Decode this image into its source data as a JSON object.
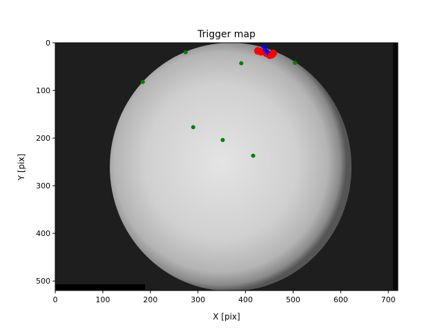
{
  "chart_data": {
    "type": "scatter",
    "title": "Trigger map",
    "xlabel": "X [pix]",
    "ylabel": "Y [pix]",
    "xlim": [
      0,
      720
    ],
    "ylim": [
      520,
      0
    ],
    "xticks": [
      0,
      100,
      200,
      300,
      400,
      500,
      600,
      700
    ],
    "yticks": [
      0,
      100,
      200,
      300,
      400,
      500
    ],
    "background": "grayscale all-sky camera image",
    "series": [
      {
        "name": "green",
        "color": "#008000",
        "marker": "circle",
        "points": [
          [
            274,
            20
          ],
          [
            391,
            43
          ],
          [
            504,
            42
          ],
          [
            184,
            82
          ],
          [
            290,
            177
          ],
          [
            352,
            204
          ],
          [
            416,
            237
          ]
        ]
      },
      {
        "name": "red",
        "color": "#ff0000",
        "marker": "circle-large",
        "points": [
          [
            426,
            17
          ],
          [
            433,
            19
          ],
          [
            444,
            22
          ],
          [
            451,
            26
          ],
          [
            458,
            22
          ],
          [
            455,
            25
          ]
        ]
      },
      {
        "name": "blue",
        "color": "#0000ff",
        "marker": "plus",
        "points": [
          [
            439,
            9
          ],
          [
            443,
            16
          ],
          [
            446,
            20
          ]
        ]
      }
    ]
  }
}
